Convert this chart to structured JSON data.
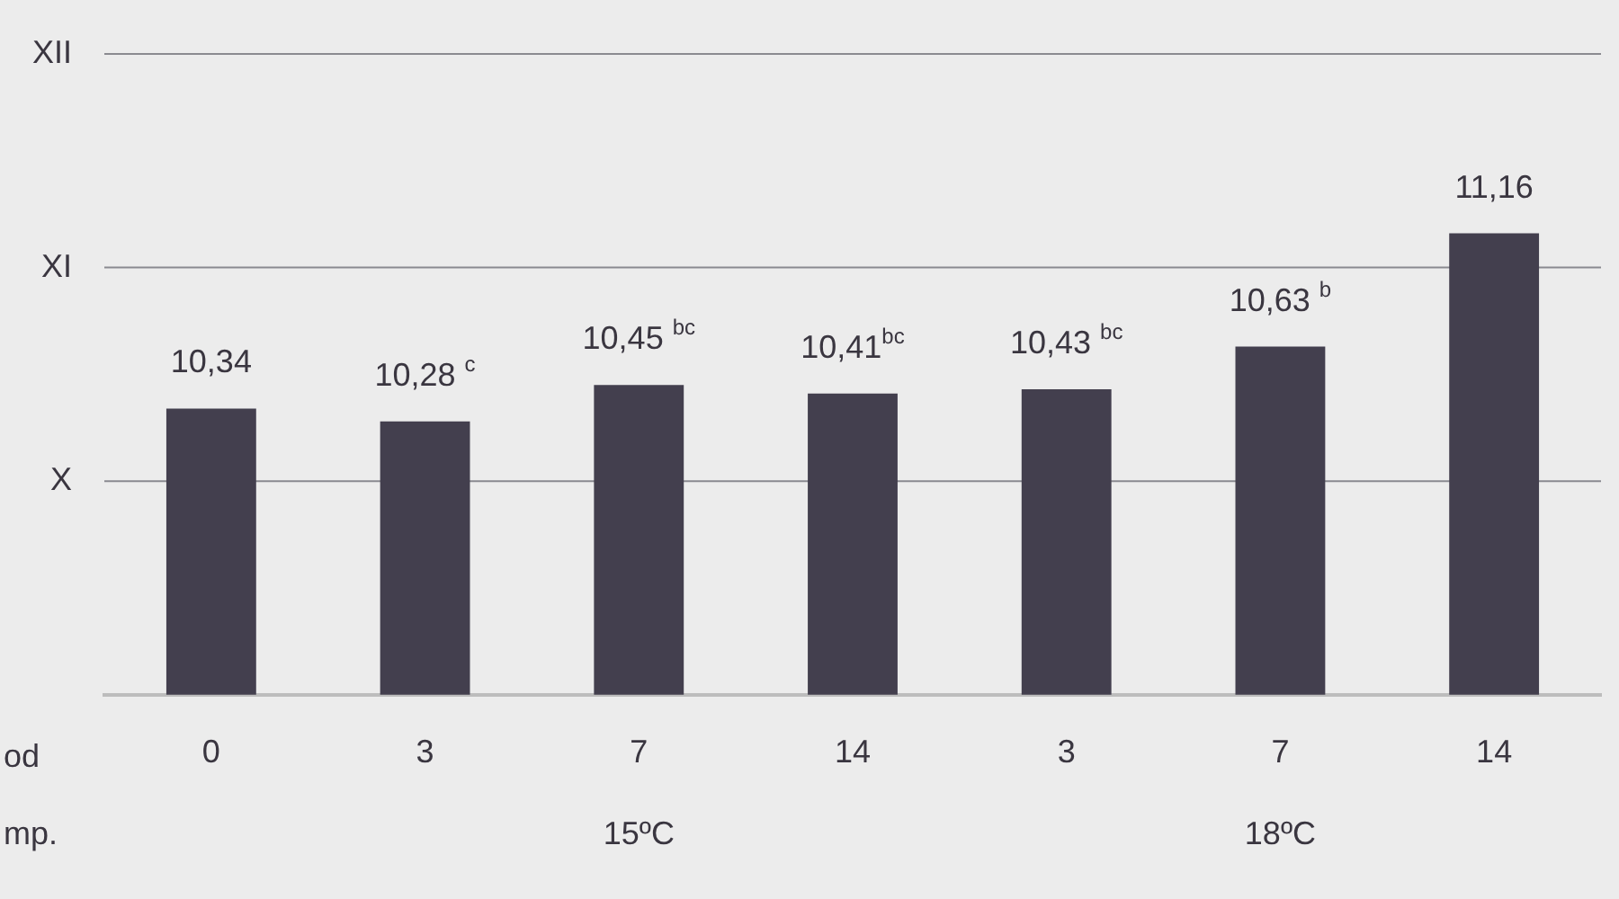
{
  "chart_data": {
    "type": "bar",
    "xlabel": "od",
    "categories": [
      "0",
      "3",
      "7",
      "14",
      "3",
      "7",
      "14"
    ],
    "values": [
      10.34,
      10.28,
      10.45,
      10.41,
      10.43,
      10.63,
      11.16
    ],
    "value_labels": [
      "10,34",
      "10,28 $^{c}$",
      "10,45 $^{bc}$",
      "10,41$^{bc}$",
      "10,43 $^{bc}$",
      "10,63 $^{b}$",
      "11,16"
    ],
    "color": "#433f4e",
    "ylim": [
      9,
      12
    ],
    "ref_lines": [
      {
        "axis": "y",
        "value": 10,
        "label": "X",
        "color": "#8a8a90"
      },
      {
        "axis": "y",
        "value": 11,
        "label": "XI",
        "color": "#8a8a90"
      },
      {
        "axis": "y",
        "value": 12,
        "label": "XII",
        "color": "#8a8a90"
      }
    ],
    "annotations": [
      "mp.",
      "15ºC",
      "18ºC"
    ]
  }
}
